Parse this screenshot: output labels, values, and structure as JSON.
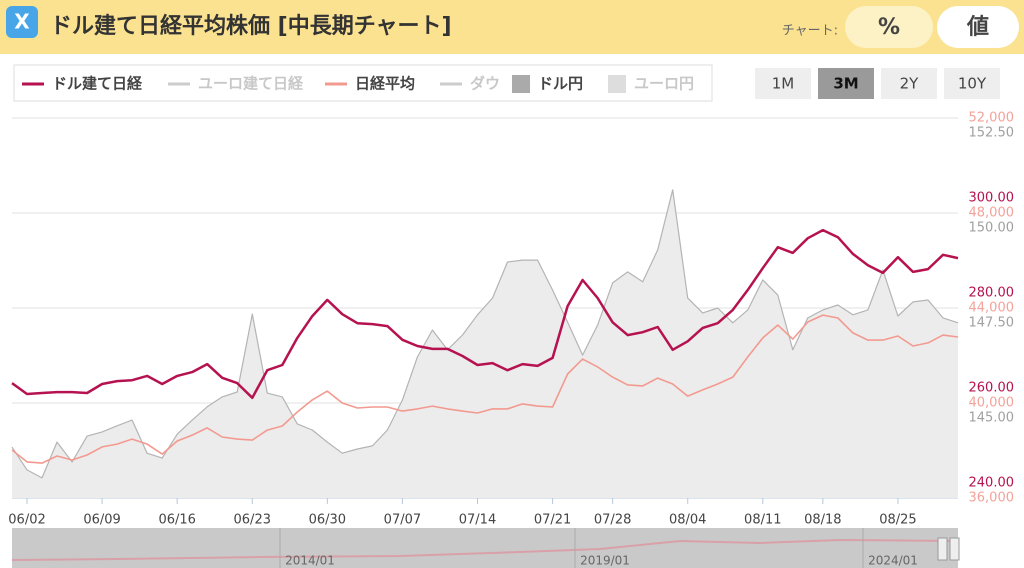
{
  "header": {
    "title": "ドル建て日経平均株価 [中長期チャート]",
    "chart_label": "チャート:",
    "buttons": [
      "%",
      "値"
    ]
  },
  "chart_data": {
    "type": "line",
    "legend": [
      {
        "name": "ドル建て日経",
        "color": "#b5124f",
        "active": true,
        "kind": "line"
      },
      {
        "name": "ユーロ建て日経",
        "color": "#cccccc",
        "active": false,
        "kind": "line"
      },
      {
        "name": "日経平均",
        "color": "#f39a90",
        "active": true,
        "kind": "line"
      },
      {
        "name": "ダウ",
        "color": "#cccccc",
        "active": false,
        "kind": "line"
      },
      {
        "name": "ドル円",
        "color": "#aaaaaa",
        "active": true,
        "kind": "area"
      },
      {
        "name": "ユーロ円",
        "color": "#dddddd",
        "active": false,
        "kind": "area"
      }
    ],
    "ranges": [
      "1M",
      "3M",
      "2Y",
      "10Y"
    ],
    "active_range": "3M",
    "source": "https://nikkei225jp.com/data/dollar.php",
    "navigator_labels": [
      "2014/01",
      "2019/01",
      "2024/01"
    ],
    "categories": [
      null,
      "06/02",
      null,
      null,
      null,
      null,
      "06/09",
      null,
      null,
      null,
      null,
      "06/16",
      null,
      null,
      null,
      null,
      "06/23",
      null,
      null,
      null,
      null,
      "06/30",
      null,
      null,
      null,
      null,
      "07/07",
      null,
      null,
      null,
      null,
      "07/14",
      null,
      null,
      null,
      null,
      "07/21",
      null,
      null,
      null,
      "07/28",
      null,
      null,
      null,
      null,
      "08/04",
      null,
      null,
      null,
      null,
      "08/11",
      null,
      null,
      null,
      "08/18",
      null,
      null,
      null,
      null,
      "08/25",
      null,
      null,
      null,
      null
    ],
    "series": [
      {
        "name": "ドル円",
        "color": "#b4b4b4",
        "fill": "#ececec",
        "axis": "y3",
        "area": true,
        "values": [
          143.84,
          143.24,
          143.03,
          143.97,
          143.45,
          144.13,
          144.24,
          144.4,
          144.55,
          143.68,
          143.55,
          144.18,
          144.55,
          144.9,
          145.16,
          145.29,
          147.34,
          145.26,
          145.16,
          144.45,
          144.29,
          143.97,
          143.68,
          143.79,
          143.87,
          144.29,
          145.08,
          146.21,
          146.92,
          146.4,
          146.79,
          147.32,
          147.76,
          148.71,
          148.76,
          148.76,
          147.97,
          147.13,
          146.26,
          147.05,
          148.16,
          148.45,
          148.19,
          149.03,
          150.61,
          147.76,
          147.37,
          147.5,
          147.11,
          147.45,
          148.24,
          147.84,
          146.4,
          147.24,
          147.45,
          147.58,
          147.32,
          147.45,
          148.5,
          147.29,
          147.66,
          147.71,
          147.24,
          147.11
        ]
      },
      {
        "name": "日経平均",
        "color": "#f39a90",
        "axis": "y2",
        "values": [
          38020,
          37520,
          37470,
          37770,
          37600,
          37810,
          38150,
          38270,
          38480,
          38270,
          37850,
          38400,
          38650,
          38950,
          38570,
          38480,
          38440,
          38860,
          39030,
          39620,
          40130,
          40500,
          40000,
          39790,
          39830,
          39830,
          39660,
          39750,
          39870,
          39750,
          39660,
          39580,
          39750,
          39750,
          39960,
          39870,
          39830,
          41220,
          41850,
          41520,
          41090,
          40760,
          40720,
          41050,
          40800,
          40290,
          40550,
          40800,
          41090,
          41940,
          42740,
          43280,
          42690,
          43410,
          43700,
          43580,
          42950,
          42650,
          42650,
          42820,
          42400,
          42530,
          42860,
          42780
        ]
      },
      {
        "name": "ドル建て日経",
        "color": "#b5124f",
        "axis": "y",
        "values": [
          264.2,
          261.9,
          262.1,
          262.3,
          262.3,
          262.1,
          264.0,
          264.6,
          264.8,
          265.7,
          264.0,
          265.7,
          266.5,
          268.2,
          265.3,
          264.2,
          261.1,
          266.9,
          268.0,
          273.7,
          278.3,
          281.7,
          278.7,
          276.8,
          276.6,
          276.2,
          273.3,
          272.0,
          271.4,
          271.4,
          269.9,
          268.0,
          268.4,
          266.9,
          268.2,
          267.8,
          269.5,
          280.4,
          285.9,
          282.1,
          277.0,
          274.3,
          274.9,
          276.0,
          271.2,
          273.0,
          275.8,
          276.8,
          279.6,
          283.8,
          288.4,
          292.8,
          291.6,
          294.7,
          296.4,
          294.9,
          291.4,
          289.0,
          287.4,
          290.7,
          287.6,
          288.2,
          291.2,
          290.5
        ]
      }
    ],
    "ylim": [
      240,
      320
    ],
    "yticks": [
      {
        "value": 240,
        "label": "240.00"
      },
      {
        "value": 260,
        "label": "260.00"
      },
      {
        "value": 280,
        "label": "280.00"
      },
      {
        "value": 300,
        "label": "300.00"
      }
    ],
    "ycolor": "#b5124f",
    "y2lim": [
      36000,
      52000
    ],
    "y2ticks": [
      {
        "value": 36000,
        "label": "36,000"
      },
      {
        "value": 40000,
        "label": "40,000"
      },
      {
        "value": 44000,
        "label": "44,000"
      },
      {
        "value": 48000,
        "label": "48,000"
      },
      {
        "value": 52000,
        "label": "52,000"
      }
    ],
    "y2color": "#f4a29a",
    "y3lim": [
      142.5,
      152.5
    ],
    "y3ticks": [
      {
        "value": 145,
        "label": "145.00"
      },
      {
        "value": 147.5,
        "label": "147.50"
      },
      {
        "value": 150,
        "label": "150.00"
      },
      {
        "value": 152.5,
        "label": "152.50"
      }
    ],
    "y3color": "#a0a0a0",
    "grid": true
  }
}
